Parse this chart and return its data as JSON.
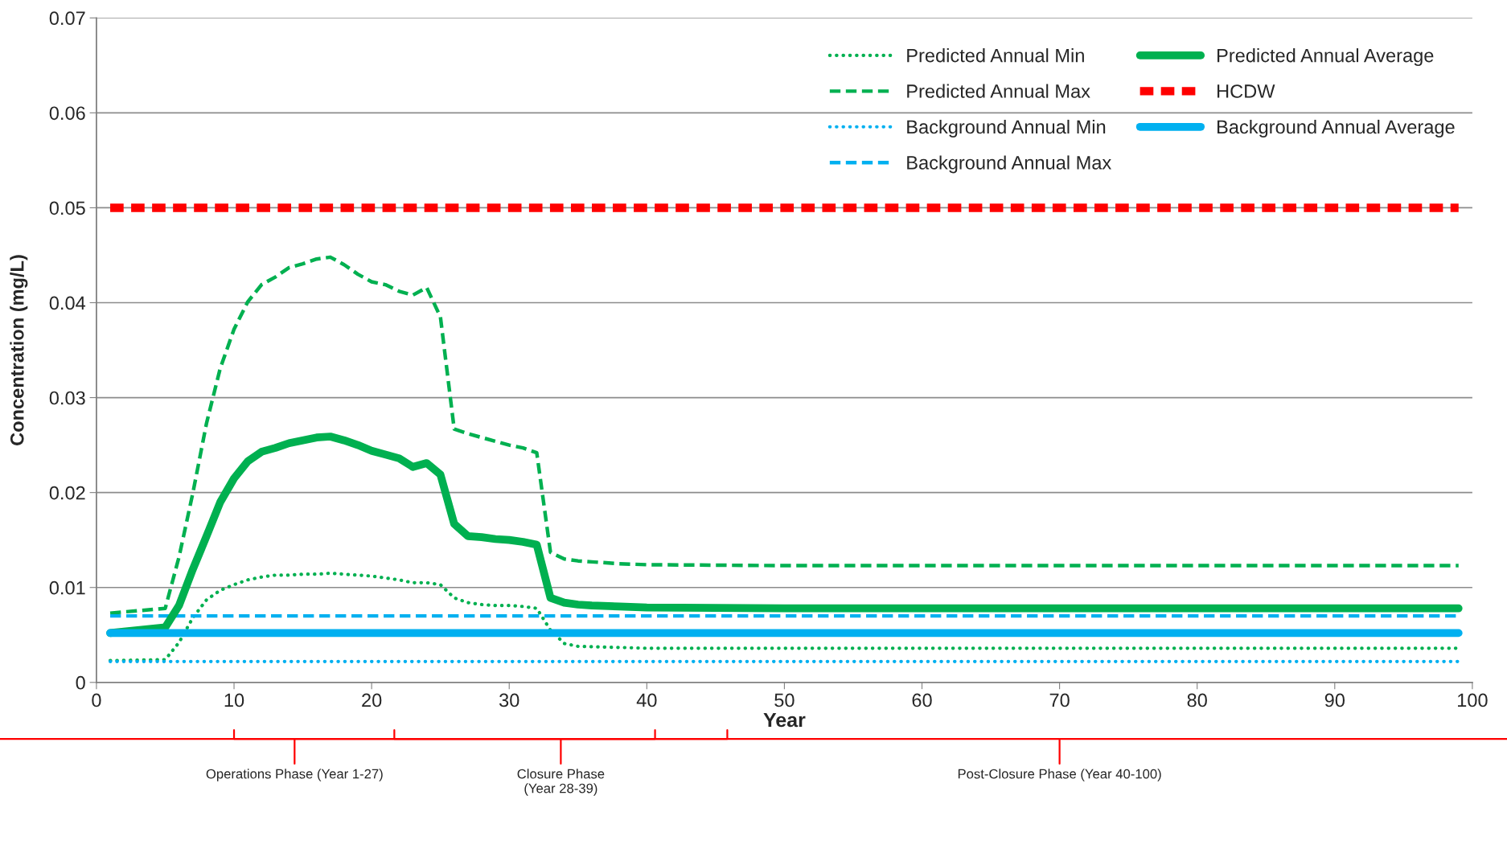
{
  "chart_data": {
    "type": "line",
    "ylabel": "Concentration (mg/L)",
    "xlabel": "Year",
    "xlim": [
      0,
      100
    ],
    "xticks": [
      0,
      10,
      20,
      30,
      40,
      50,
      60,
      70,
      80,
      90,
      100
    ],
    "ylim": [
      0,
      0.07
    ],
    "yticks": [
      0,
      0.01,
      0.02,
      0.03,
      0.04,
      0.05,
      0.06,
      0.07
    ],
    "grid": "y",
    "legend": "top right",
    "series": [
      {
        "name": "Predicted Annual Min",
        "color": "#00b050",
        "line_style": "dotted",
        "x": [
          1,
          5,
          6,
          7,
          8,
          9,
          10,
          11,
          12,
          13,
          14,
          15,
          16,
          17,
          18,
          19,
          20,
          21,
          22,
          23,
          24,
          25,
          26,
          27,
          28,
          29,
          30,
          31,
          32,
          33,
          34,
          35,
          40,
          50,
          60,
          70,
          80,
          90,
          99
        ],
        "values": [
          0.0023,
          0.0024,
          0.0042,
          0.0068,
          0.0087,
          0.0097,
          0.0103,
          0.0108,
          0.0111,
          0.0113,
          0.0113,
          0.0114,
          0.0114,
          0.0115,
          0.0114,
          0.0113,
          0.0112,
          0.011,
          0.0108,
          0.0105,
          0.0105,
          0.0103,
          0.0089,
          0.0084,
          0.0082,
          0.0081,
          0.0081,
          0.008,
          0.0078,
          0.0055,
          0.0041,
          0.0038,
          0.0036,
          0.0036,
          0.0036,
          0.0036,
          0.0036,
          0.0036,
          0.0036
        ]
      },
      {
        "name": "Predicted Annual Max",
        "color": "#00b050",
        "line_style": "dashed",
        "x": [
          1,
          5,
          6,
          7,
          8,
          9,
          10,
          11,
          12,
          13,
          14,
          15,
          16,
          17,
          18,
          19,
          20,
          21,
          22,
          23,
          24,
          25,
          26,
          27,
          28,
          29,
          30,
          31,
          32,
          33,
          34,
          35,
          36,
          38,
          40,
          50,
          60,
          70,
          80,
          90,
          99
        ],
        "values": [
          0.0073,
          0.0078,
          0.0132,
          0.0199,
          0.0273,
          0.0331,
          0.0372,
          0.0401,
          0.0419,
          0.0427,
          0.0437,
          0.0441,
          0.0446,
          0.0448,
          0.044,
          0.043,
          0.0422,
          0.0419,
          0.0412,
          0.0408,
          0.0416,
          0.0385,
          0.0267,
          0.0262,
          0.0258,
          0.0254,
          0.025,
          0.0247,
          0.0242,
          0.0137,
          0.013,
          0.0128,
          0.0127,
          0.0125,
          0.0124,
          0.0123,
          0.0123,
          0.0123,
          0.0123,
          0.0123,
          0.0123
        ]
      },
      {
        "name": "Background Annual Min",
        "color": "#00b0f0",
        "line_style": "dotted",
        "x": [
          1,
          99
        ],
        "values": [
          0.0022,
          0.0022
        ]
      },
      {
        "name": "Background Annual Max",
        "color": "#00b0f0",
        "line_style": "dashed",
        "x": [
          1,
          99
        ],
        "values": [
          0.007,
          0.007
        ]
      },
      {
        "name": "Predicted Annual Average",
        "color": "#00b050",
        "line_style": "solid",
        "x": [
          1,
          5,
          6,
          7,
          8,
          9,
          10,
          11,
          12,
          13,
          14,
          15,
          16,
          17,
          18,
          19,
          20,
          21,
          22,
          23,
          24,
          25,
          26,
          27,
          28,
          29,
          30,
          31,
          32,
          33,
          34,
          35,
          36,
          38,
          40,
          50,
          60,
          70,
          80,
          90,
          99
        ],
        "values": [
          0.0052,
          0.0058,
          0.0081,
          0.0119,
          0.0154,
          0.019,
          0.0215,
          0.0233,
          0.0243,
          0.0247,
          0.0252,
          0.0255,
          0.0258,
          0.0259,
          0.0255,
          0.025,
          0.0244,
          0.024,
          0.0236,
          0.0227,
          0.0231,
          0.0219,
          0.0167,
          0.0154,
          0.0153,
          0.0151,
          0.015,
          0.0148,
          0.0145,
          0.0089,
          0.0084,
          0.0082,
          0.0081,
          0.008,
          0.0079,
          0.0078,
          0.0078,
          0.0078,
          0.0078,
          0.0078,
          0.0078
        ]
      },
      {
        "name": "HCDW",
        "color": "#ff0000",
        "line_style": "dashed",
        "x": [
          1,
          99
        ],
        "values": [
          0.05,
          0.05
        ]
      },
      {
        "name": "Background Annual Average",
        "color": "#00b0f0",
        "line_style": "solid",
        "x": [
          1,
          99
        ],
        "values": [
          0.0052,
          0.0052
        ]
      }
    ],
    "annotations": [
      "Operations Phase (Year 1-27)",
      "Closure Phase\n(Year 28-39)",
      "Post-Closure Phase (Year 40-100)"
    ]
  }
}
